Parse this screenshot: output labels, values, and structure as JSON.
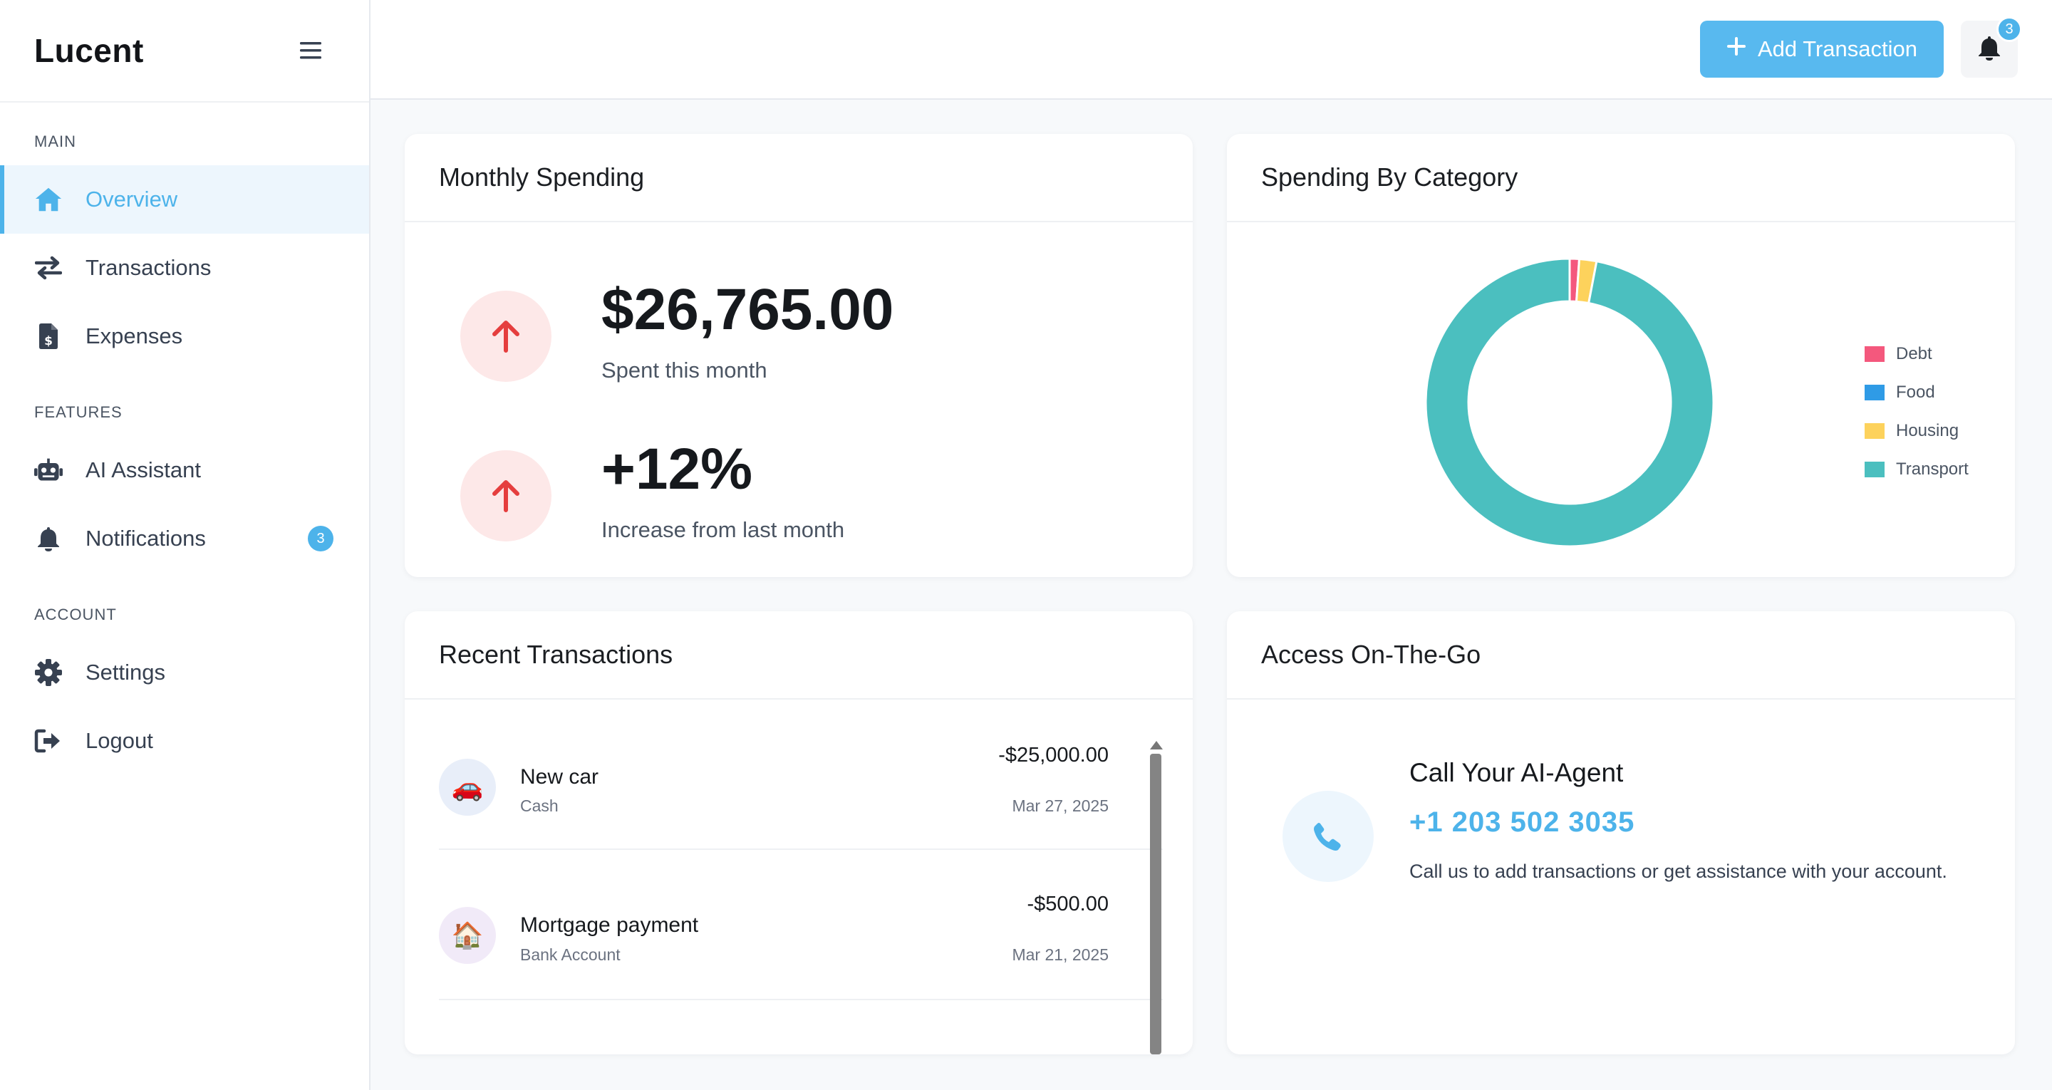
{
  "brand": "Lucent",
  "sidebar": {
    "sections": [
      {
        "label": "MAIN"
      },
      {
        "label": "FEATURES"
      },
      {
        "label": "ACCOUNT"
      }
    ],
    "items": [
      {
        "label": "Overview",
        "icon": "home-icon",
        "active": true
      },
      {
        "label": "Transactions",
        "icon": "swap-arrows-icon"
      },
      {
        "label": "Expenses",
        "icon": "invoice-dollar-icon"
      },
      {
        "label": "AI Assistant",
        "icon": "robot-icon"
      },
      {
        "label": "Notifications",
        "icon": "bell-icon",
        "badge": "3"
      },
      {
        "label": "Settings",
        "icon": "gear-icon"
      },
      {
        "label": "Logout",
        "icon": "logout-icon"
      }
    ]
  },
  "topbar": {
    "add_button": "Add Transaction",
    "notification_count": "3"
  },
  "monthly_spending": {
    "title": "Monthly Spending",
    "amount": "$26,765.00",
    "amount_caption": "Spent this month",
    "change": "+12%",
    "change_caption": "Increase from last month"
  },
  "category": {
    "title": "Spending By Category",
    "legend": [
      "Debt",
      "Food",
      "Housing",
      "Transport"
    ]
  },
  "chart_data": {
    "type": "pie",
    "donut": true,
    "categories": [
      "Debt",
      "Food",
      "Housing",
      "Transport"
    ],
    "values": [
      275,
      0,
      500,
      25000
    ],
    "colors": [
      "#f4587d",
      "#2f9be6",
      "#fdd25c",
      "#4bbfbf"
    ],
    "legend_position": "right"
  },
  "recent": {
    "title": "Recent Transactions",
    "items": [
      {
        "name": "New car",
        "source": "Cash",
        "amount": "-$25,000.00",
        "date": "Mar 27, 2025",
        "icon": "🚗"
      },
      {
        "name": "Mortgage payment",
        "source": "Bank Account",
        "amount": "-$500.00",
        "date": "Mar 21, 2025",
        "icon": "🏠"
      }
    ]
  },
  "access": {
    "title": "Access On-The-Go",
    "agent_title": "Call Your AI-Agent",
    "phone": "+1 203 502 3035",
    "description": "Call us to add transactions or get assistance with your account."
  }
}
